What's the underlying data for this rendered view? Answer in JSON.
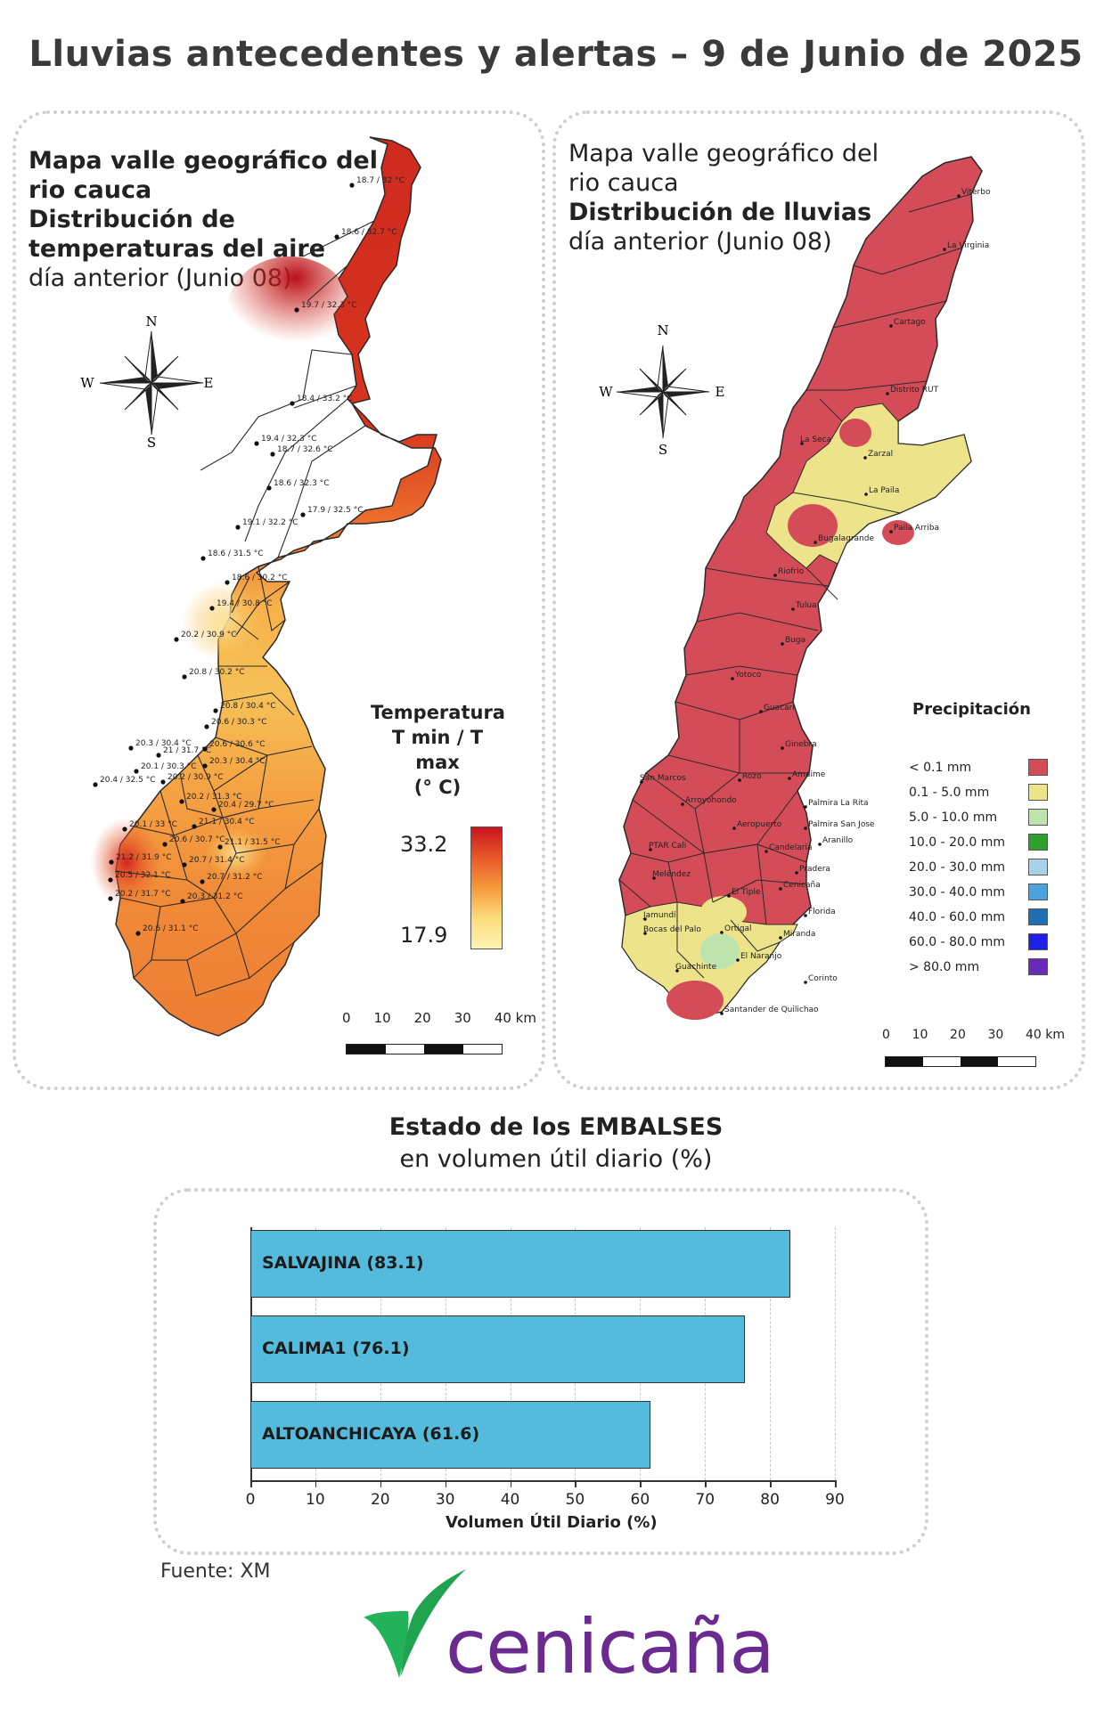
{
  "title": "Lluvias antecedentes y alertas – 9 de Junio de 2025",
  "temp_map": {
    "title_line1": "Mapa valle geográfico del",
    "title_line2": "rio cauca",
    "title_line3": "Distribución de",
    "title_line4": "temperaturas del aire",
    "subtitle": "día anterior (Junio 08)",
    "compass": {
      "n": "N",
      "s": "S",
      "e": "E",
      "w": "W"
    },
    "legend": {
      "title_line1": "Temperatura",
      "title_line2": "T min / T max",
      "title_line3": "(° C)",
      "max": "33.2",
      "min": "17.9",
      "colors": [
        "#c8141e",
        "#e8582a",
        "#f49a3c",
        "#fcdc7c",
        "#fdf4b4"
      ]
    },
    "scale": {
      "labels": [
        "0",
        "10",
        "20",
        "30",
        "40 km"
      ]
    },
    "points": [
      {
        "label": "18.7 / 32 °C"
      },
      {
        "label": "18.6 / 32.7 °C"
      },
      {
        "label": "19.7 / 32.3 °C"
      },
      {
        "label": "18.4 / 33.2 °C"
      },
      {
        "label": "19.4 / 32.3 °C"
      },
      {
        "label": "18.7 / 32.6 °C"
      },
      {
        "label": "18.6 / 32.3 °C"
      },
      {
        "label": "17.9 / 32.5 °C"
      },
      {
        "label": "19.1 / 32.2 °C"
      },
      {
        "label": "18.6 / 31.5 °C"
      },
      {
        "label": "18.6 / 30.2 °C"
      },
      {
        "label": "19.4 / 30.8 °C"
      },
      {
        "label": "20.2 / 30.9 °C"
      },
      {
        "label": "20.8 / 30.2 °C"
      },
      {
        "label": "20.8 / 30.4 °C"
      },
      {
        "label": "20.6 / 30.3 °C"
      },
      {
        "label": "20.3 / 30.4 °C"
      },
      {
        "label": "21 / 31.7 °C"
      },
      {
        "label": "20.6 / 30.6 °C"
      },
      {
        "label": "20.1 / 30.3 °C"
      },
      {
        "label": "20.3 / 30.4 °C"
      },
      {
        "label": "20.4 / 32.5 °C"
      },
      {
        "label": "20.2 / 30.9 °C"
      },
      {
        "label": "20.2 / 31.3 °C"
      },
      {
        "label": "20.4 / 29.7 °C"
      },
      {
        "label": "20.1 / 33 °C"
      },
      {
        "label": "21.1 / 30.4 °C"
      },
      {
        "label": "20.6 / 30.7 °C"
      },
      {
        "label": "21.1 / 31.5 °C"
      },
      {
        "label": "21.2 / 31.9 °C"
      },
      {
        "label": "20.7 / 31.4 °C"
      },
      {
        "label": "20.5 / 32.1 °C"
      },
      {
        "label": "20.7 / 31.2 °C"
      },
      {
        "label": "20.2 / 31.7 °C"
      },
      {
        "label": "20.3 / 31.2 °C"
      },
      {
        "label": "20.6 / 31.1 °C"
      }
    ]
  },
  "rain_map": {
    "title_line1": "Mapa valle geográfico del",
    "title_line2": "rio cauca",
    "title_line3": "Distribución de lluvias",
    "subtitle": "día anterior (Junio 08)",
    "compass": {
      "n": "N",
      "s": "S",
      "e": "E",
      "w": "W"
    },
    "legend": {
      "title": "Precipitación",
      "items": [
        {
          "label": "< 0.1 mm",
          "color": "#d44c57"
        },
        {
          "label": "0.1 - 5.0 mm",
          "color": "#ede38a"
        },
        {
          "label": "5.0 - 10.0 mm",
          "color": "#bfe3ad"
        },
        {
          "label": "10.0 - 20.0 mm",
          "color": "#2da02d"
        },
        {
          "label": "20.0 - 30.0 mm",
          "color": "#a9d1e8"
        },
        {
          "label": "30.0 - 40.0 mm",
          "color": "#4aa3df"
        },
        {
          "label": "40.0 - 60.0 mm",
          "color": "#1f6fb2"
        },
        {
          "label": "60.0 - 80.0 mm",
          "color": "#1f1fe6"
        },
        {
          "label": "> 80.0 mm",
          "color": "#6a2ab8"
        }
      ]
    },
    "scale": {
      "labels": [
        "0",
        "10",
        "20",
        "30",
        "40 km"
      ]
    },
    "stations": [
      {
        "label": "Viterbo"
      },
      {
        "label": "La Virginia"
      },
      {
        "label": "Cartago"
      },
      {
        "label": "Distrito RUT"
      },
      {
        "label": "La Seca"
      },
      {
        "label": "Zarzal"
      },
      {
        "label": "La Paila"
      },
      {
        "label": "Paila Arriba"
      },
      {
        "label": "Bugalagrande"
      },
      {
        "label": "Riofrio"
      },
      {
        "label": "Tulua"
      },
      {
        "label": "Buga"
      },
      {
        "label": "Yotoco"
      },
      {
        "label": "Guacari"
      },
      {
        "label": "Ginebra"
      },
      {
        "label": "Amaime"
      },
      {
        "label": "San Marcos"
      },
      {
        "label": "Rozo"
      },
      {
        "label": "Palmira La Rita"
      },
      {
        "label": "Arroyohondo"
      },
      {
        "label": "Palmira San Jose"
      },
      {
        "label": "Aeropuerto"
      },
      {
        "label": "Aranillo"
      },
      {
        "label": "PTAR Cali"
      },
      {
        "label": "Candelaria"
      },
      {
        "label": "Pradera"
      },
      {
        "label": "Meléndez"
      },
      {
        "label": "Cenicaña"
      },
      {
        "label": "El Tiple"
      },
      {
        "label": "Florida"
      },
      {
        "label": "Jamundí"
      },
      {
        "label": "Bocas del Palo"
      },
      {
        "label": "Ortigal"
      },
      {
        "label": "Miranda"
      },
      {
        "label": "El Naranjo"
      },
      {
        "label": "Guachinte"
      },
      {
        "label": "Corinto"
      },
      {
        "label": "Santander de Quilichao"
      }
    ]
  },
  "embalses": {
    "title": "Estado de los EMBALSES",
    "subtitle": "en volumen útil diario (%)",
    "xlabel": "Volumen Útil Diario (%)"
  },
  "chart_data": {
    "type": "bar",
    "orientation": "horizontal",
    "title": "Estado de los EMBALSES",
    "subtitle": "en volumen útil diario (%)",
    "xlabel": "Volumen Útil Diario (%)",
    "ylabel": "",
    "categories": [
      "SALVAJINA (83.1)",
      "CALIMA1 (76.1)",
      "ALTOANCHICAYA (61.6)"
    ],
    "values": [
      83.1,
      76.1,
      61.6
    ],
    "xlim": [
      0,
      90
    ],
    "ticks": [
      "0",
      "10",
      "20",
      "30",
      "40",
      "50",
      "60",
      "70",
      "80",
      "90"
    ],
    "grid": true,
    "bar_color": "#55bbdc"
  },
  "source": "Fuente: XM",
  "logo": {
    "text": "cenicaña",
    "color": "#6a2a8f",
    "leaf_color": "#22b35a"
  }
}
